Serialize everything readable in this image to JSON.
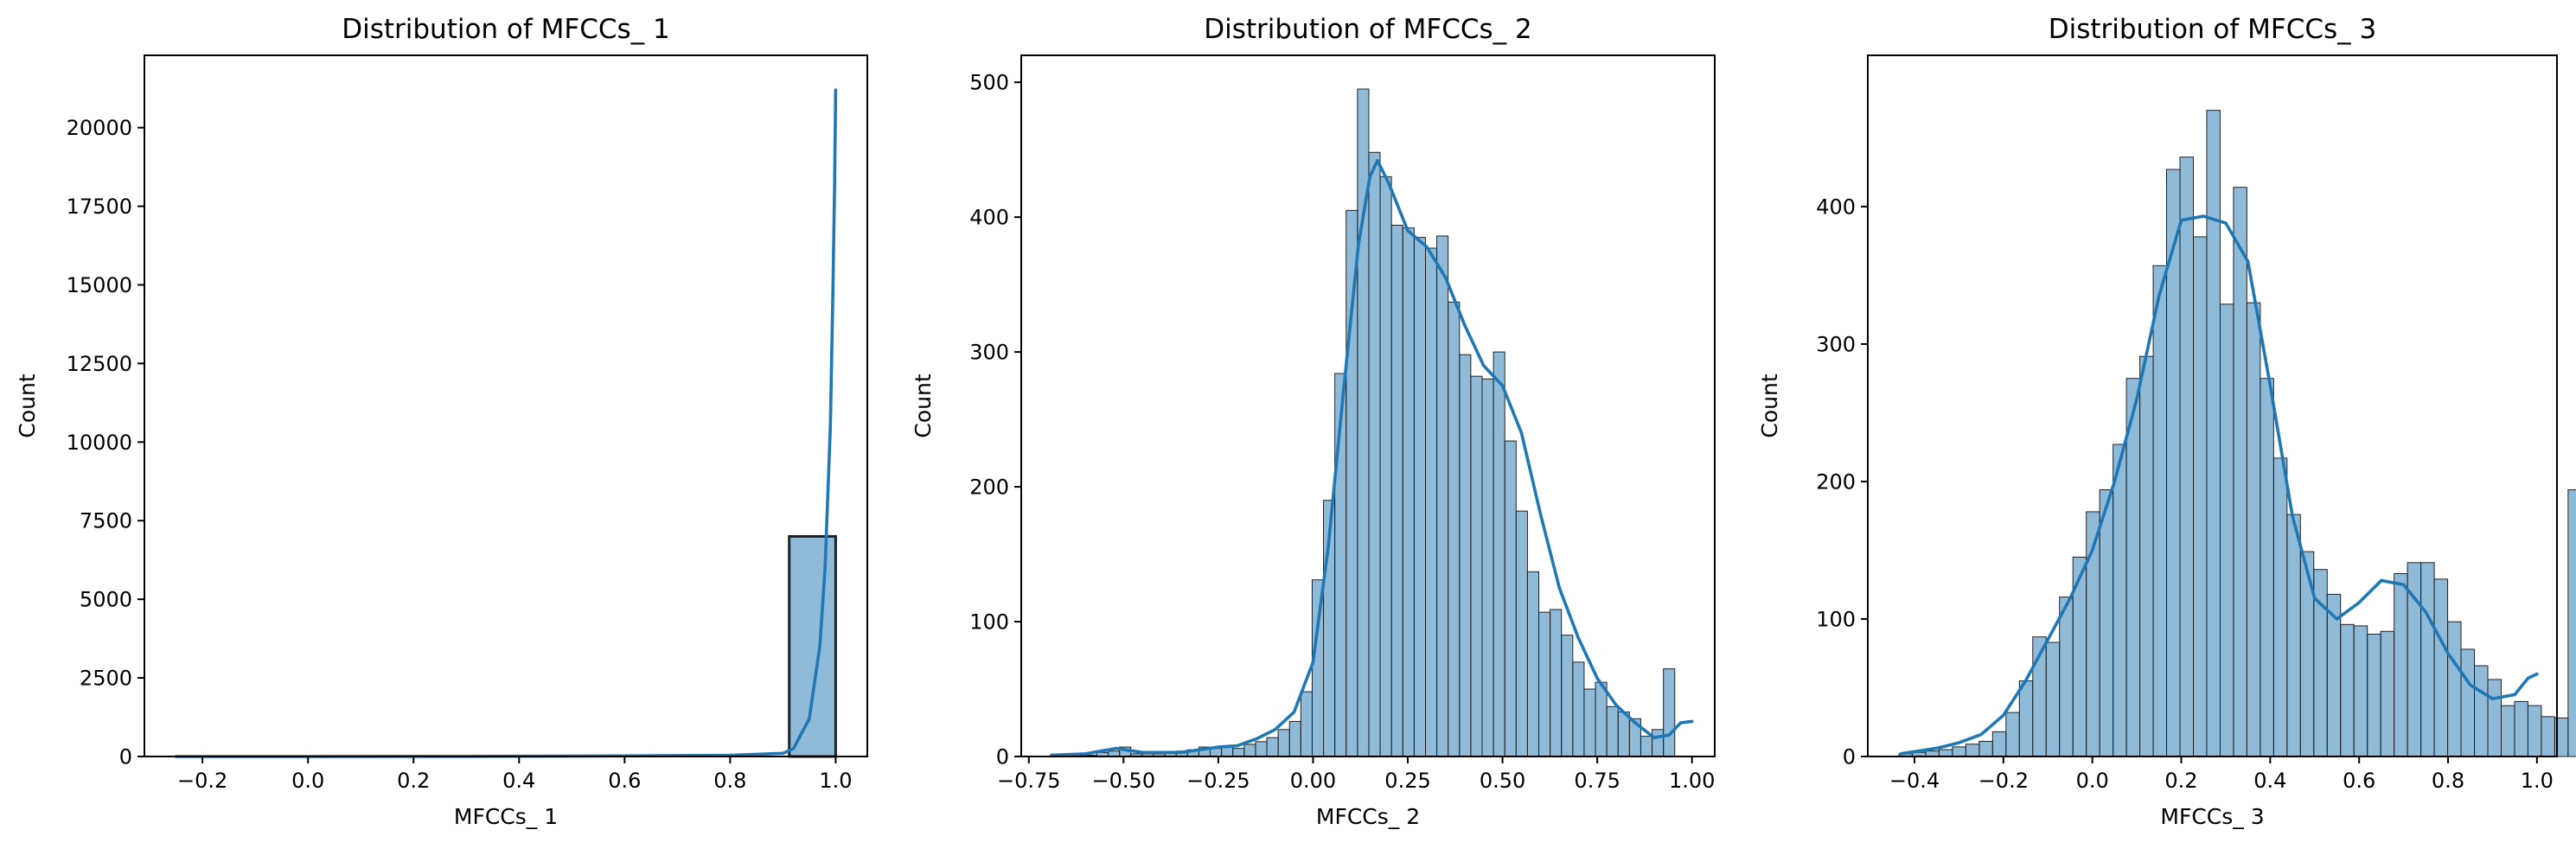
{
  "chart_data": [
    {
      "type": "histogram",
      "title": "Distribution of MFCCs_ 1",
      "xlabel": "MFCCs_ 1",
      "ylabel": "Count",
      "xlim": [
        -0.31,
        1.06
      ],
      "ylim": [
        0,
        22300
      ],
      "xticks": [
        -0.2,
        0.0,
        0.2,
        0.4,
        0.6,
        0.8,
        1.0
      ],
      "xtick_labels": [
        "−0.2",
        "0.0",
        "0.2",
        "0.4",
        "0.6",
        "0.8",
        "1.0"
      ],
      "yticks": [
        0,
        2500,
        5000,
        7500,
        10000,
        12500,
        15000,
        17500,
        20000
      ],
      "ytick_labels": [
        "0",
        "2500",
        "5000",
        "7500",
        "10000",
        "12500",
        "15000",
        "17500",
        "20000"
      ],
      "bins": [
        {
          "x0": 0.912,
          "x1": 1.0,
          "count": 7000
        }
      ],
      "kde": [
        [
          -0.25,
          0
        ],
        [
          0.0,
          0
        ],
        [
          0.3,
          5
        ],
        [
          0.6,
          20
        ],
        [
          0.8,
          40
        ],
        [
          0.9,
          100
        ],
        [
          0.92,
          250
        ],
        [
          0.95,
          1200
        ],
        [
          0.97,
          3500
        ],
        [
          0.98,
          6000
        ],
        [
          0.99,
          10500
        ],
        [
          0.995,
          15000
        ],
        [
          0.998,
          18200
        ],
        [
          1.0,
          21200
        ]
      ]
    },
    {
      "type": "histogram",
      "title": "Distribution of MFCCs_ 2",
      "xlabel": "MFCCs_ 2",
      "ylabel": "Count",
      "xlim": [
        -0.77,
        1.06
      ],
      "ylim": [
        0,
        520
      ],
      "xticks": [
        -0.75,
        -0.5,
        -0.25,
        0.0,
        0.25,
        0.5,
        0.75,
        1.0
      ],
      "xtick_labels": [
        "−0.75",
        "−0.50",
        "−0.25",
        "0.00",
        "0.25",
        "0.50",
        "0.75",
        "1.00"
      ],
      "yticks": [
        0,
        100,
        200,
        300,
        400,
        500
      ],
      "ytick_labels": [
        "0",
        "100",
        "200",
        "300",
        "400",
        "500"
      ],
      "bin_start": -0.69,
      "bin_width": 0.0299,
      "counts": [
        1,
        1,
        1,
        1,
        3,
        4,
        7,
        2,
        2,
        2,
        3,
        4,
        5,
        7,
        6,
        7,
        6,
        9,
        11,
        14,
        20,
        26,
        48,
        131,
        190,
        284,
        405,
        495,
        448,
        430,
        394,
        392,
        385,
        377,
        386,
        337,
        298,
        282,
        280,
        300,
        234,
        182,
        137,
        107,
        109,
        90,
        70,
        50,
        55,
        37,
        33,
        28,
        15,
        20,
        65
      ],
      "kde": [
        [
          -0.69,
          1
        ],
        [
          -0.6,
          2
        ],
        [
          -0.52,
          6
        ],
        [
          -0.45,
          3
        ],
        [
          -0.35,
          3
        ],
        [
          -0.25,
          7
        ],
        [
          -0.2,
          8
        ],
        [
          -0.15,
          13
        ],
        [
          -0.1,
          20
        ],
        [
          -0.05,
          33
        ],
        [
          0.0,
          70
        ],
        [
          0.04,
          155
        ],
        [
          0.08,
          270
        ],
        [
          0.12,
          380
        ],
        [
          0.15,
          430
        ],
        [
          0.17,
          442
        ],
        [
          0.2,
          425
        ],
        [
          0.25,
          390
        ],
        [
          0.3,
          378
        ],
        [
          0.35,
          355
        ],
        [
          0.4,
          320
        ],
        [
          0.45,
          290
        ],
        [
          0.5,
          275
        ],
        [
          0.55,
          240
        ],
        [
          0.6,
          180
        ],
        [
          0.65,
          125
        ],
        [
          0.7,
          88
        ],
        [
          0.75,
          58
        ],
        [
          0.8,
          38
        ],
        [
          0.85,
          25
        ],
        [
          0.9,
          14
        ],
        [
          0.94,
          16
        ],
        [
          0.97,
          25
        ],
        [
          1.0,
          26
        ]
      ]
    },
    {
      "type": "histogram",
      "title": "Distribution of MFCCs_ 3",
      "xlabel": "MFCCs_ 3",
      "ylabel": "Count",
      "xlim": [
        -0.505,
        1.045
      ],
      "ylim": [
        0,
        510
      ],
      "xticks": [
        -0.4,
        -0.2,
        0.0,
        0.2,
        0.4,
        0.6,
        0.8,
        1.0
      ],
      "xtick_labels": [
        "−0.4",
        "−0.2",
        "0.0",
        "0.2",
        "0.4",
        "0.6",
        "0.8",
        "1.0"
      ],
      "yticks": [
        0,
        100,
        200,
        300,
        400
      ],
      "ytick_labels": [
        "0",
        "100",
        "200",
        "300",
        "400"
      ],
      "bin_start": -0.435,
      "bin_width": 0.0301,
      "counts": [
        2,
        3,
        4,
        5,
        7,
        9,
        11,
        18,
        32,
        55,
        87,
        83,
        116,
        145,
        178,
        194,
        227,
        275,
        291,
        357,
        427,
        436,
        378,
        470,
        329,
        414,
        330,
        275,
        217,
        176,
        149,
        136,
        118,
        96,
        95,
        89,
        91,
        133,
        141,
        141,
        129,
        98,
        78,
        66,
        56,
        37,
        40,
        37,
        29,
        28,
        194
      ],
      "kde": [
        [
          -0.43,
          2
        ],
        [
          -0.35,
          6
        ],
        [
          -0.3,
          10
        ],
        [
          -0.25,
          16
        ],
        [
          -0.2,
          30
        ],
        [
          -0.15,
          55
        ],
        [
          -0.1,
          85
        ],
        [
          -0.05,
          115
        ],
        [
          0.0,
          150
        ],
        [
          0.05,
          200
        ],
        [
          0.1,
          260
        ],
        [
          0.15,
          335
        ],
        [
          0.2,
          390
        ],
        [
          0.25,
          393
        ],
        [
          0.3,
          388
        ],
        [
          0.35,
          360
        ],
        [
          0.4,
          270
        ],
        [
          0.45,
          175
        ],
        [
          0.5,
          115
        ],
        [
          0.55,
          100
        ],
        [
          0.6,
          112
        ],
        [
          0.65,
          128
        ],
        [
          0.7,
          125
        ],
        [
          0.75,
          105
        ],
        [
          0.8,
          75
        ],
        [
          0.85,
          52
        ],
        [
          0.9,
          42
        ],
        [
          0.95,
          45
        ],
        [
          0.98,
          57
        ],
        [
          1.0,
          60
        ]
      ]
    }
  ]
}
